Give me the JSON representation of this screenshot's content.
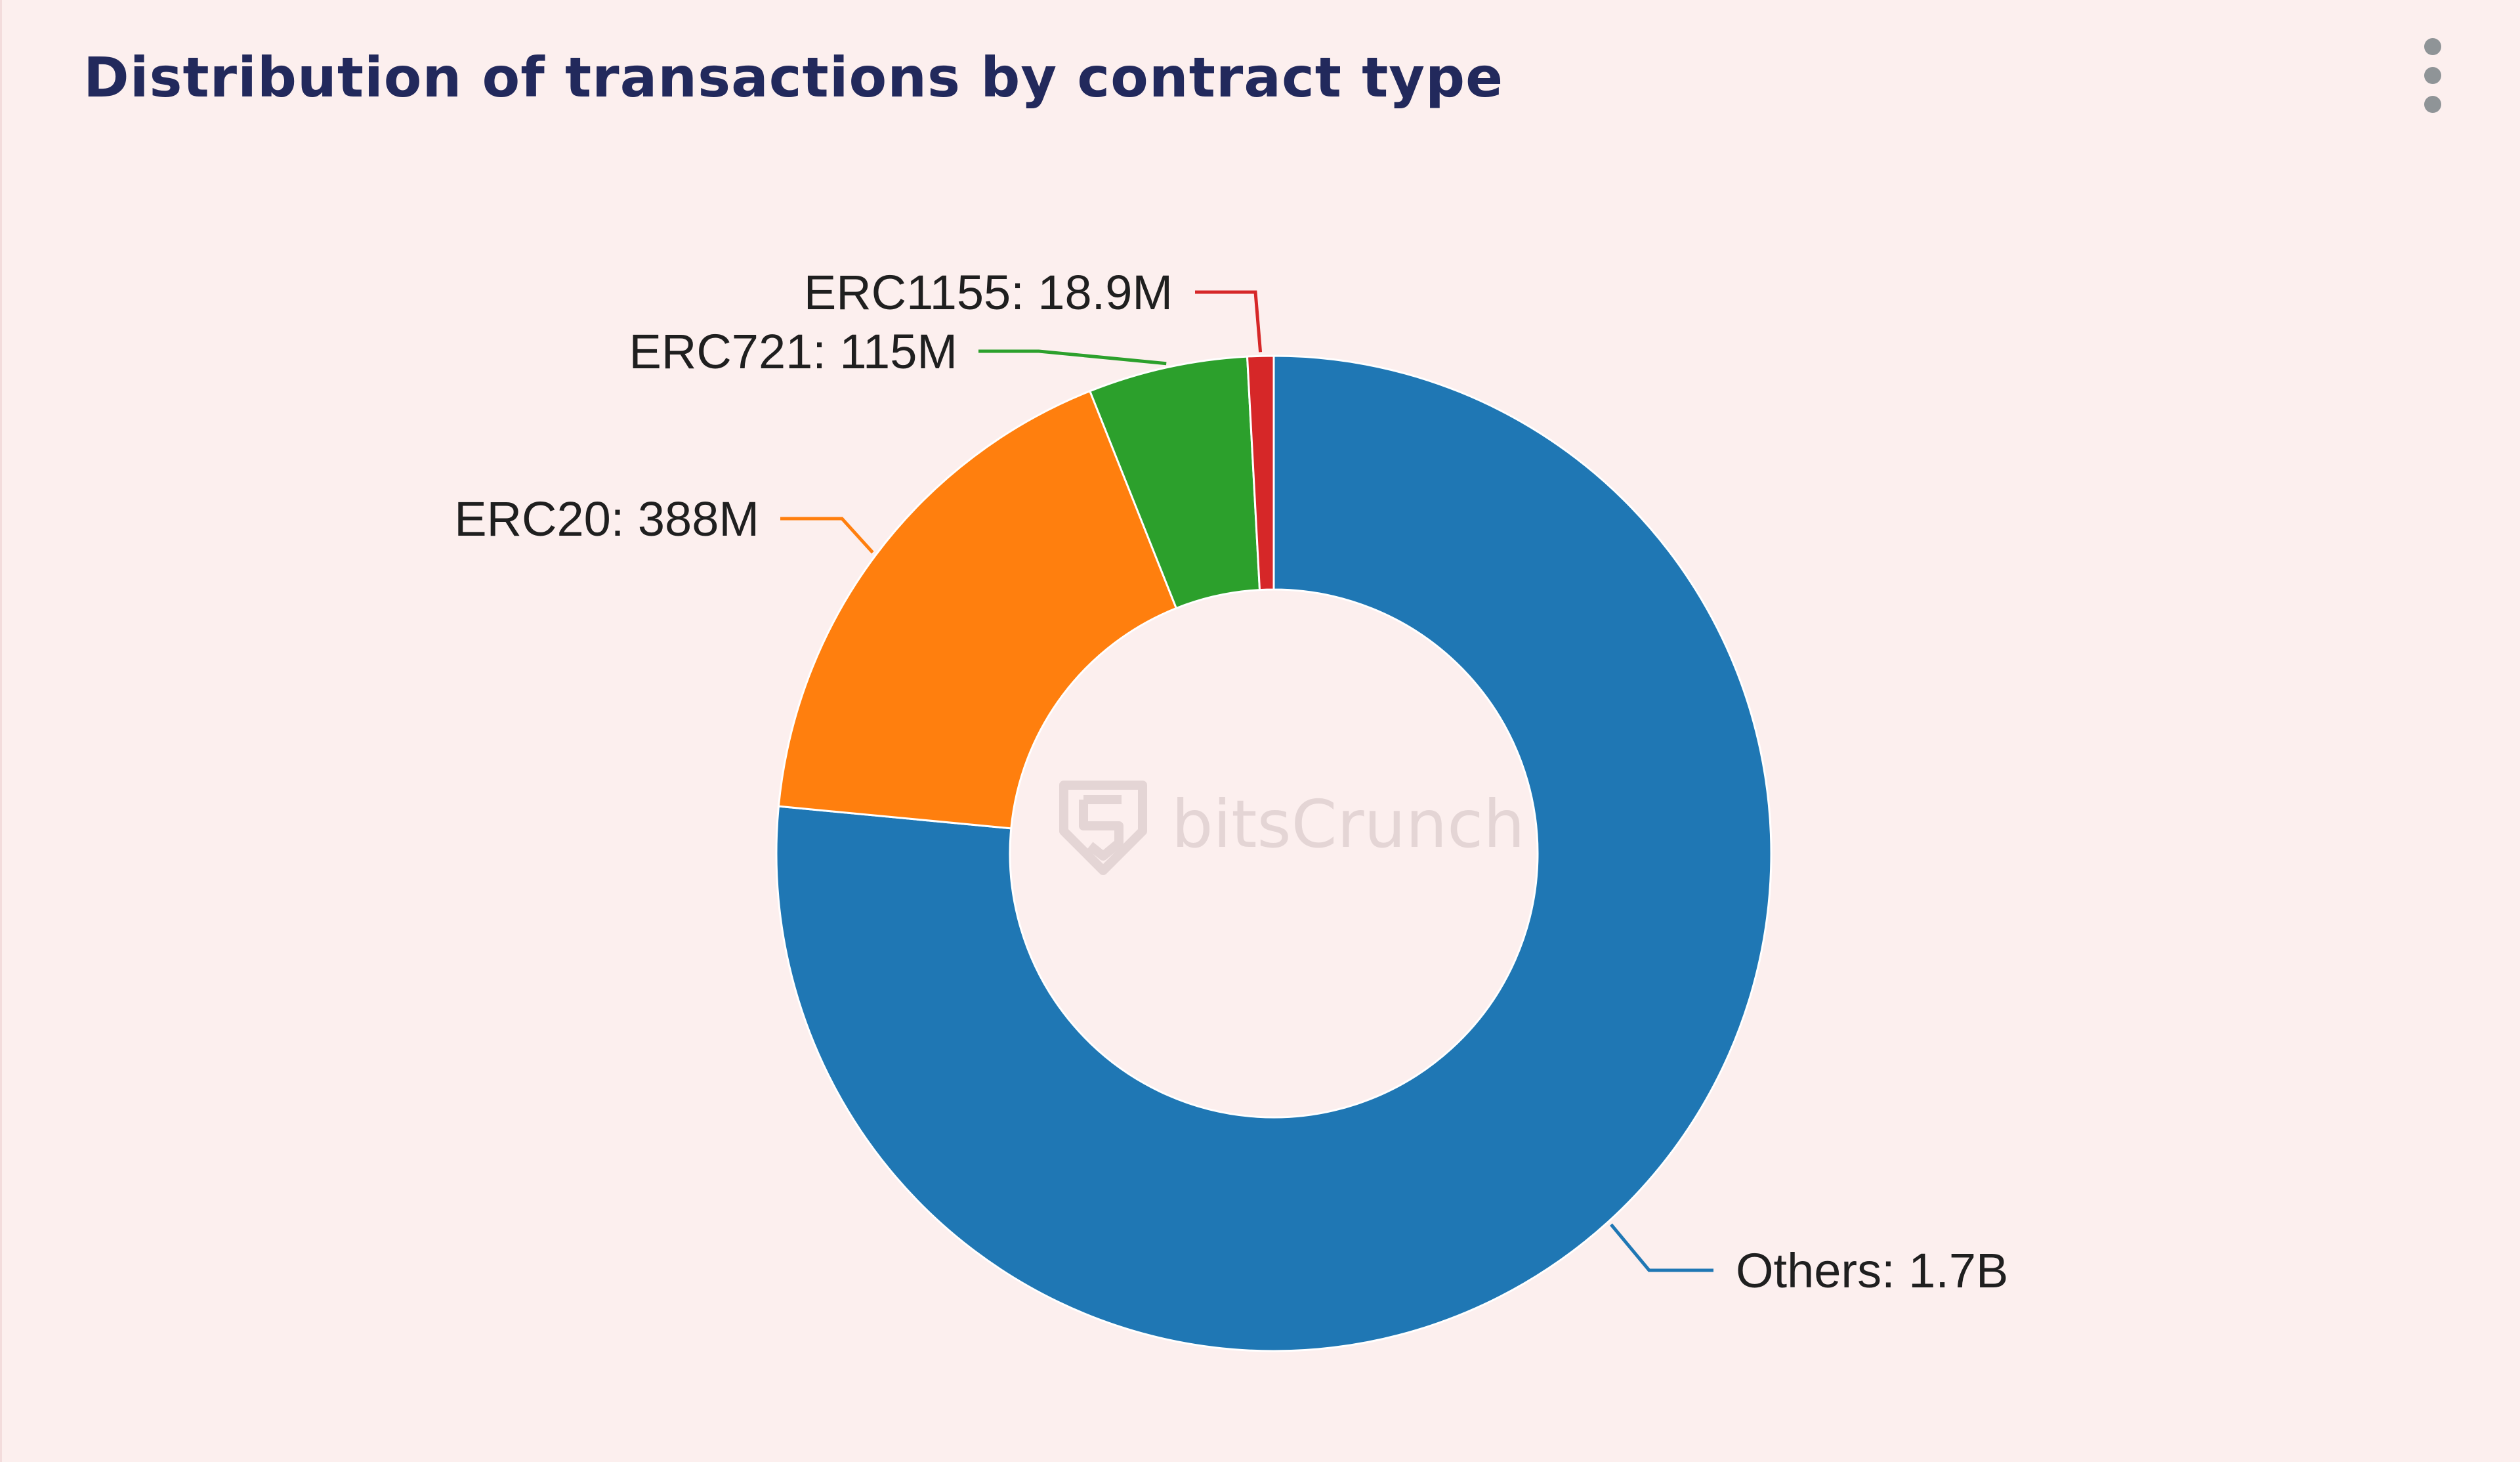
{
  "card": {
    "title": "Distribution of transactions by contract type",
    "menu_icon": "more-vertical-icon"
  },
  "watermark": {
    "text": "bitsCrunch",
    "icon": "bitscrunch-logo-icon"
  },
  "chart_data": {
    "type": "pie",
    "style": "donut",
    "title": "Distribution of transactions by contract type",
    "start": "12 o'clock, clockwise",
    "slices": [
      {
        "label": "Others",
        "value": 1700000000,
        "display": "1.7B",
        "color": "#1f77b4"
      },
      {
        "label": "ERC20",
        "value": 388000000,
        "display": "388M",
        "color": "#ff7f0e"
      },
      {
        "label": "ERC721",
        "value": 115000000,
        "display": "115M",
        "color": "#2ca02c"
      },
      {
        "label": "ERC1155",
        "value": 18900000,
        "display": "18.9M",
        "color": "#d62728"
      }
    ],
    "label_format": "{label}: {display}"
  }
}
